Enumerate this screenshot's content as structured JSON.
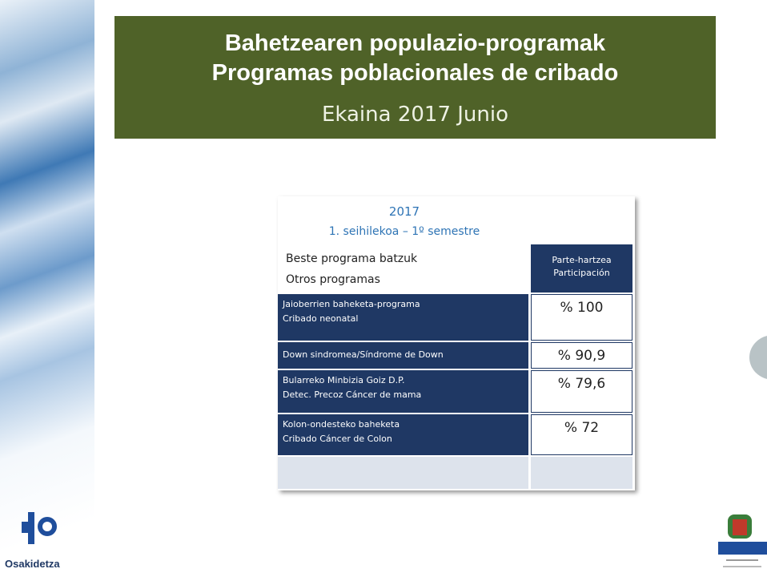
{
  "header": {
    "title": [
      "Bahetzearen populazio-programak",
      "Programas poblacionales de cribado"
    ],
    "subtitle": "Ekaina 2017 Junio"
  },
  "table": {
    "year": "2017",
    "period": "1. seihilekoa – 1º semestre",
    "column_headers": [
      [
        "Beste programa batzuk",
        "Otros programas"
      ],
      [
        "Parte-hartzea",
        "Participación"
      ]
    ],
    "rows": [
      [
        [
          "Jaioberrien  baheketa-programa",
          "Cribado neonatal"
        ],
        "% 100"
      ],
      [
        [
          "Down sindromea/Síndrome  de Down"
        ],
        "% 90,9"
      ],
      [
        [
          "Bularreko  Minbizia Goiz D.P.",
          "Detec. Precoz Cáncer  de mama"
        ],
        "% 79,6"
      ],
      [
        [
          "Kolon-ondesteko baheketa",
          "Cribado Cáncer de Colon"
        ],
        "% 72"
      ]
    ]
  },
  "logo": "Osakidetza"
}
